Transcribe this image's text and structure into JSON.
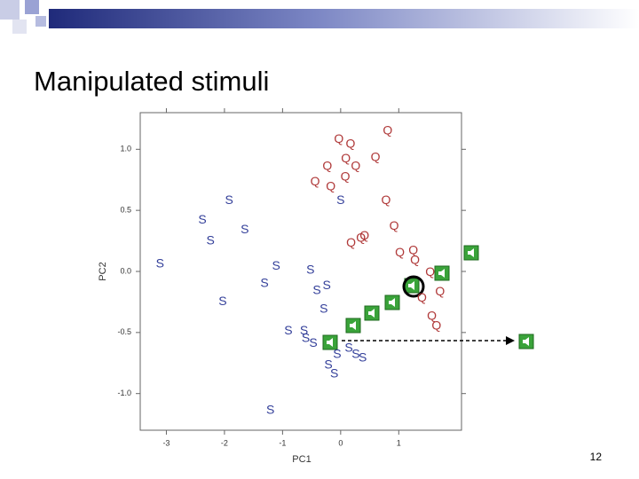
{
  "title": "Manipulated stimuli",
  "page_number": "12",
  "chart_data": {
    "type": "scatter",
    "xlabel": "PC1",
    "ylabel": "PC2",
    "xlim": [
      -3.45,
      2.08
    ],
    "ylim": [
      -1.3,
      1.3
    ],
    "xticks": [
      -3,
      -2,
      -1,
      0,
      1
    ],
    "yticks": [
      {
        "value": -1,
        "label": "-1.0"
      },
      {
        "value": -0.5,
        "label": "-0.5"
      },
      {
        "value": 0,
        "label": "0.0"
      },
      {
        "value": 0.5,
        "label": "0.5"
      },
      {
        "value": 1,
        "label": "1.0"
      }
    ],
    "series": [
      {
        "name": "Q",
        "color": "#b03a3a",
        "x": [
          -0.03,
          0.17,
          0.81,
          0.09,
          0.26,
          0.6,
          -0.23,
          -0.44,
          -0.17,
          0.08,
          0.78,
          0.92,
          0.18,
          0.35,
          0.41,
          1.02,
          1.25,
          1.28,
          1.54,
          1.71,
          1.4,
          1.57,
          1.65
        ],
        "values": [
          1.08,
          1.04,
          1.15,
          0.92,
          0.86,
          0.93,
          0.86,
          0.73,
          0.69,
          0.77,
          0.58,
          0.37,
          0.23,
          0.27,
          0.29,
          0.15,
          0.17,
          0.09,
          -0.01,
          -0.17,
          -0.22,
          -0.37,
          -0.45
        ]
      },
      {
        "name": "S",
        "color": "#34409a",
        "x": [
          -1.92,
          -2.38,
          -1.65,
          -2.24,
          -3.11,
          0,
          -1.11,
          -0.52,
          -1.31,
          -0.41,
          -0.24,
          -2.03,
          -0.29,
          -0.9,
          -0.63,
          -0.6,
          -0.47,
          -0.06,
          0.14,
          0.26,
          0.38,
          -0.21,
          -0.11,
          -1.21
        ],
        "values": [
          0.58,
          0.42,
          0.34,
          0.25,
          0.06,
          0.58,
          0.04,
          0.01,
          -0.1,
          -0.16,
          -0.12,
          -0.25,
          -0.31,
          -0.49,
          -0.49,
          -0.55,
          -0.59,
          -0.68,
          -0.63,
          -0.68,
          -0.71,
          -0.77,
          -0.84,
          -1.14
        ]
      }
    ]
  }
}
